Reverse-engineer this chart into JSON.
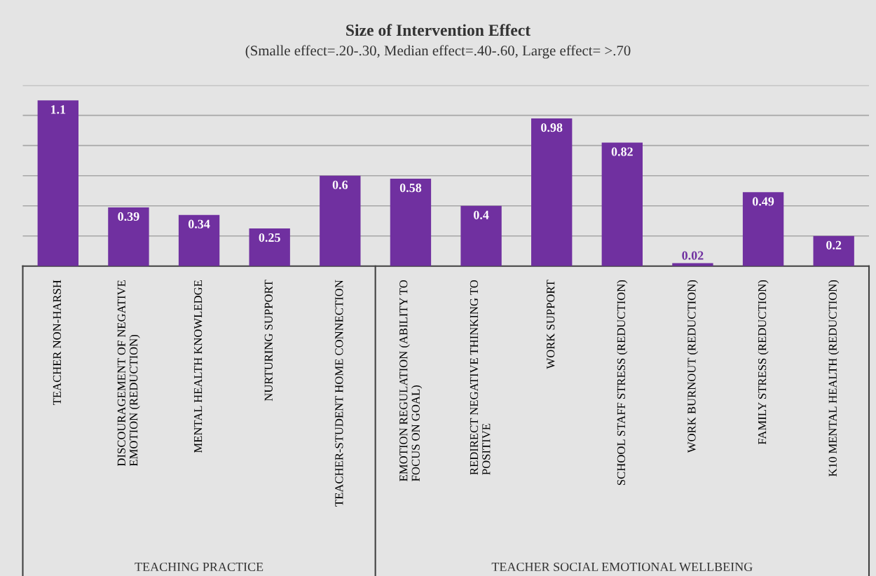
{
  "chart_data": {
    "type": "bar",
    "title": "Size of Intervention Effect",
    "subtitle": "(Smalle effect=.20-.30, Median effect=.40-.60, Large effect= >.70",
    "categories": [
      "TEACHER NON-HARSH",
      "DISCOURAGEMENT OF NEGATIVE\nEMOTION (REDUCTION)",
      "MENTAL HEALTH KNOWLEDGE",
      "NURTURING SUPPORT",
      "TEACHER-STUDENT HOME CONNECTION",
      "EMOTION REGULATION (ABILITY TO\nFOCUS ON GOAL)",
      "REDIRECT NEGATIVE THINKING TO\nPOSITIVE",
      "WORK SUPPORT",
      "SCHOOL STAFF STRESS (REDUCTION)",
      "WORK BURNOUT (REDUCTION)",
      "FAMILY STRESS (REDUCTION)",
      "K10 MENTAL HEALTH (REDUCTION)"
    ],
    "values": [
      1.1,
      0.39,
      0.34,
      0.25,
      0.6,
      0.58,
      0.4,
      0.98,
      0.82,
      0.02,
      0.49,
      0.2
    ],
    "color": "#7030a0",
    "data_labels": true,
    "ylim": [
      0,
      1.2
    ],
    "yticks": [
      {
        "value": 0.2,
        "label": null
      },
      {
        "value": 0.4,
        "label": null
      },
      {
        "value": 0.6,
        "label": null
      },
      {
        "value": 0.8,
        "label": null
      },
      {
        "value": 1.0,
        "label": null
      },
      {
        "value": 1.2,
        "label": null
      }
    ],
    "grid": "y",
    "annotations": [
      "TEACHING PRACTICE",
      "TEACHER SOCIAL EMOTIONAL WELLBEING"
    ]
  }
}
